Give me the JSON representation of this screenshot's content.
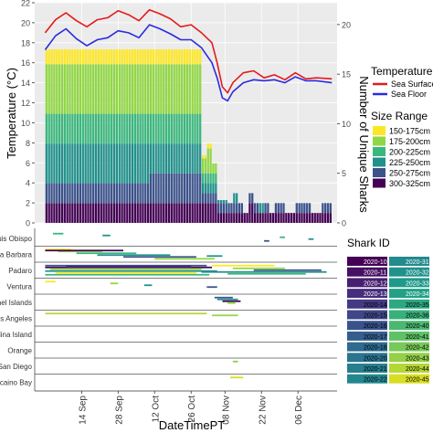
{
  "chart_data": [
    {
      "type": "bar",
      "subtype": "stacked-bar-with-lines",
      "xlabel": "",
      "ylabel": "Temperature (°C)",
      "y2label": "Number of Unique Sharks",
      "ylim": [
        0,
        22
      ],
      "y_ticks": [
        "0",
        "2",
        "4",
        "6",
        "8",
        "10",
        "12",
        "14",
        "16",
        "18",
        "20",
        "22"
      ],
      "y2lim": [
        0,
        22.2
      ],
      "y2_ticks": [
        "0",
        "5",
        "10",
        "15",
        "20"
      ],
      "y2_tick_values": [
        0,
        5,
        10,
        15,
        20
      ],
      "grid": true,
      "legend_placement": "right",
      "temperature_legend_title": "Temperature Data",
      "size_legend_title": "Size Range",
      "temperature_series": [
        {
          "name": "Sea Surface",
          "color": "#e41a1c",
          "days": [
            0,
            4,
            8,
            12,
            16,
            20,
            24,
            28,
            32,
            36,
            40,
            44,
            48,
            52,
            56,
            60,
            64,
            66,
            68,
            70,
            72,
            76,
            80,
            84,
            88,
            92,
            96,
            100,
            104,
            110
          ],
          "values": [
            19.0,
            20.3,
            21.0,
            20.2,
            19.6,
            20.3,
            20.5,
            21.2,
            20.8,
            20.2,
            21.3,
            20.9,
            20.4,
            19.6,
            19.8,
            19.0,
            18.0,
            16.0,
            13.6,
            13.0,
            14.0,
            15.0,
            15.2,
            14.5,
            14.8,
            14.3,
            15.0,
            14.4,
            14.5,
            14.4
          ]
        },
        {
          "name": "Sea Floor",
          "color": "#2b2be0",
          "days": [
            0,
            4,
            8,
            12,
            16,
            20,
            24,
            28,
            32,
            36,
            40,
            44,
            48,
            52,
            56,
            60,
            64,
            66,
            68,
            70,
            72,
            76,
            80,
            84,
            88,
            92,
            96,
            100,
            104,
            110
          ],
          "values": [
            17.3,
            18.7,
            19.4,
            18.4,
            17.7,
            18.3,
            18.5,
            19.2,
            19.0,
            18.5,
            19.8,
            19.4,
            18.9,
            18.3,
            18.3,
            17.5,
            16.0,
            14.5,
            12.5,
            12.2,
            13.1,
            14.0,
            14.3,
            14.2,
            14.3,
            14.0,
            14.6,
            14.2,
            14.2,
            14.0
          ]
        }
      ],
      "size_ranges": [
        {
          "name": "300-325cm",
          "color": "#440154"
        },
        {
          "name": "250-275cm",
          "color": "#3b528b"
        },
        {
          "name": "225-250cm",
          "color": "#21918c"
        },
        {
          "name": "200-225cm",
          "color": "#3ab77d"
        },
        {
          "name": "175-200cm",
          "color": "#90d743"
        },
        {
          "name": "150-175cm",
          "color": "#fde725"
        }
      ],
      "stack_segments": [
        {
          "start": 0,
          "end": 40,
          "counts": [
            2,
            2,
            4,
            3,
            5,
            1.5
          ]
        },
        {
          "start": 40,
          "end": 60,
          "counts": [
            2,
            3,
            3,
            3,
            5,
            1.5
          ]
        },
        {
          "start": 60,
          "end": 62,
          "counts": [
            2,
            1,
            1,
            1,
            1.5,
            0.3
          ]
        },
        {
          "start": 62,
          "end": 64,
          "counts": [
            2,
            1,
            1,
            1,
            2.5,
            0.5
          ]
        },
        {
          "start": 64,
          "end": 66,
          "counts": [
            2,
            1,
            1,
            1,
            1,
            0
          ]
        },
        {
          "start": 66,
          "end": 70,
          "counts": [
            1,
            1,
            0.3,
            0,
            0,
            0
          ]
        },
        {
          "start": 70,
          "end": 72,
          "counts": [
            1,
            1,
            0,
            0,
            0,
            0
          ]
        },
        {
          "start": 72,
          "end": 74,
          "counts": [
            1,
            1,
            1,
            0,
            0,
            0
          ]
        },
        {
          "start": 74,
          "end": 76,
          "counts": [
            1,
            1,
            0,
            0,
            0,
            0
          ]
        },
        {
          "start": 76,
          "end": 78,
          "counts": [
            1,
            0,
            0,
            0,
            0,
            0
          ]
        },
        {
          "start": 78,
          "end": 80,
          "counts": [
            2,
            1,
            0,
            0,
            0,
            0
          ]
        },
        {
          "start": 80,
          "end": 82,
          "counts": [
            1,
            1,
            0,
            0,
            0,
            0
          ]
        },
        {
          "start": 82,
          "end": 84,
          "counts": [
            1,
            0,
            1,
            0,
            0,
            0
          ]
        },
        {
          "start": 84,
          "end": 86,
          "counts": [
            1,
            1,
            0,
            0,
            0,
            0
          ]
        },
        {
          "start": 86,
          "end": 88,
          "counts": [
            1,
            0,
            0,
            0,
            0,
            0
          ]
        },
        {
          "start": 88,
          "end": 90,
          "counts": [
            1,
            1,
            0,
            0,
            0,
            0
          ]
        },
        {
          "start": 90,
          "end": 92,
          "counts": [
            1,
            1,
            0,
            0,
            0,
            0
          ]
        },
        {
          "start": 92,
          "end": 96,
          "counts": [
            1,
            0,
            0,
            0,
            0,
            0
          ]
        },
        {
          "start": 96,
          "end": 102,
          "counts": [
            1,
            1,
            0,
            0,
            0,
            0
          ]
        },
        {
          "start": 102,
          "end": 106,
          "counts": [
            1,
            0,
            0,
            0,
            0,
            0
          ]
        },
        {
          "start": 106,
          "end": 110,
          "counts": [
            1,
            1,
            0,
            0,
            0,
            0
          ]
        }
      ]
    },
    {
      "type": "timeline",
      "xlabel": "DateTimePT",
      "x_ticks": [
        "14 Sep",
        "28 Sep",
        "12 Oct",
        "26 Oct",
        "08 Nov",
        "22 Nov",
        "06 Dec"
      ],
      "x_tick_days": [
        14,
        28,
        42,
        56,
        69,
        83,
        97
      ],
      "locations": [
        "Luis Obispo",
        "Santa Barbara",
        "Padaro",
        "Ventura",
        "Channel Islands",
        "Los Angeles",
        "Catalina Island",
        "Orange",
        "San Diego",
        "Vizcaino Bay"
      ],
      "shark_id_legend_title": "Shark ID",
      "shark_ids": [
        {
          "id": "2020-10",
          "color": "#440154"
        },
        {
          "id": "2020-31",
          "color": "#238a8d"
        },
        {
          "id": "2020-11",
          "color": "#471063"
        },
        {
          "id": "2020-32",
          "color": "#20928c"
        },
        {
          "id": "2020-12",
          "color": "#481f70"
        },
        {
          "id": "2020-33",
          "color": "#1f998a"
        },
        {
          "id": "2020-13",
          "color": "#472d7b"
        },
        {
          "id": "2020-34",
          "color": "#22a187"
        },
        {
          "id": "2020-14",
          "color": "#443a83"
        },
        {
          "id": "2020-35",
          "color": "#2ba882"
        },
        {
          "id": "2020-15",
          "color": "#3f4788"
        },
        {
          "id": "2020-36",
          "color": "#38b07b"
        },
        {
          "id": "2020-16",
          "color": "#3a528b"
        },
        {
          "id": "2020-40",
          "color": "#4ab872"
        },
        {
          "id": "2020-17",
          "color": "#355e8d"
        },
        {
          "id": "2020-41",
          "color": "#5ec166"
        },
        {
          "id": "2020-18",
          "color": "#306a8e"
        },
        {
          "id": "2020-42",
          "color": "#79c85a"
        },
        {
          "id": "2020-20",
          "color": "#2b748e"
        },
        {
          "id": "2020-43",
          "color": "#95d048"
        },
        {
          "id": "2020-21",
          "color": "#277f8e"
        },
        {
          "id": "2020-44",
          "color": "#b5d735"
        },
        {
          "id": "2020-22",
          "color": "#24878e"
        },
        {
          "id": "2020-45",
          "color": "#d7dd23"
        }
      ],
      "detections": [
        {
          "loc": 0,
          "start": 3,
          "end": 7,
          "color": "#3ab77d"
        },
        {
          "loc": 0,
          "start": 22,
          "end": 25,
          "color": "#21918c"
        },
        {
          "loc": 0,
          "start": 90,
          "end": 92,
          "color": "#3ab77d"
        },
        {
          "loc": 0,
          "start": 101,
          "end": 103,
          "color": "#21918c"
        },
        {
          "loc": 0,
          "start": 84,
          "end": 86,
          "color": "#3b528b"
        },
        {
          "loc": 1,
          "start": 0,
          "end": 10,
          "color": "#fde725"
        },
        {
          "loc": 1,
          "start": 5,
          "end": 22,
          "color": "#90d743"
        },
        {
          "loc": 1,
          "start": 12,
          "end": 35,
          "color": "#3ab77d"
        },
        {
          "loc": 1,
          "start": 20,
          "end": 48,
          "color": "#21918c"
        },
        {
          "loc": 1,
          "start": 30,
          "end": 58,
          "color": "#3b528b"
        },
        {
          "loc": 1,
          "start": 42,
          "end": 65,
          "color": "#90d743"
        },
        {
          "loc": 1,
          "start": 0,
          "end": 30,
          "color": "#440154"
        },
        {
          "loc": 1,
          "start": 62,
          "end": 68,
          "color": "#21918c"
        },
        {
          "loc": 2,
          "start": 0,
          "end": 62,
          "color": "#3b528b"
        },
        {
          "loc": 2,
          "start": 0,
          "end": 64,
          "color": "#440154"
        },
        {
          "loc": 2,
          "start": 2,
          "end": 60,
          "color": "#90d743"
        },
        {
          "loc": 2,
          "start": 0,
          "end": 66,
          "color": "#21918c"
        },
        {
          "loc": 2,
          "start": 4,
          "end": 58,
          "color": "#fde725"
        },
        {
          "loc": 2,
          "start": 0,
          "end": 63,
          "color": "#3ab77d"
        },
        {
          "loc": 2,
          "start": 8,
          "end": 56,
          "color": "#472d7b"
        },
        {
          "loc": 2,
          "start": 60,
          "end": 108,
          "color": "#21918c"
        },
        {
          "loc": 2,
          "start": 70,
          "end": 100,
          "color": "#3ab77d"
        },
        {
          "loc": 2,
          "start": 72,
          "end": 92,
          "color": "#90d743"
        },
        {
          "loc": 2,
          "start": 80,
          "end": 106,
          "color": "#3b528b"
        },
        {
          "loc": 2,
          "start": 64,
          "end": 88,
          "color": "#fde725"
        },
        {
          "loc": 3,
          "start": 0,
          "end": 4,
          "color": "#fde725"
        },
        {
          "loc": 3,
          "start": 25,
          "end": 28,
          "color": "#90d743"
        },
        {
          "loc": 3,
          "start": 38,
          "end": 41,
          "color": "#21918c"
        },
        {
          "loc": 3,
          "start": 62,
          "end": 66,
          "color": "#3b528b"
        },
        {
          "loc": 4,
          "start": 65,
          "end": 72,
          "color": "#3b528b"
        },
        {
          "loc": 4,
          "start": 66,
          "end": 74,
          "color": "#21918c"
        },
        {
          "loc": 4,
          "start": 68,
          "end": 75,
          "color": "#440154"
        },
        {
          "loc": 4,
          "start": 70,
          "end": 73,
          "color": "#90d743"
        },
        {
          "loc": 5,
          "start": 0,
          "end": 62,
          "color": "#b5d735"
        },
        {
          "loc": 5,
          "start": 64,
          "end": 74,
          "color": "#90d743"
        },
        {
          "loc": 8,
          "start": 72,
          "end": 74,
          "color": "#95d048"
        },
        {
          "loc": 9,
          "start": 71,
          "end": 76,
          "color": "#d7dd23"
        }
      ]
    }
  ]
}
